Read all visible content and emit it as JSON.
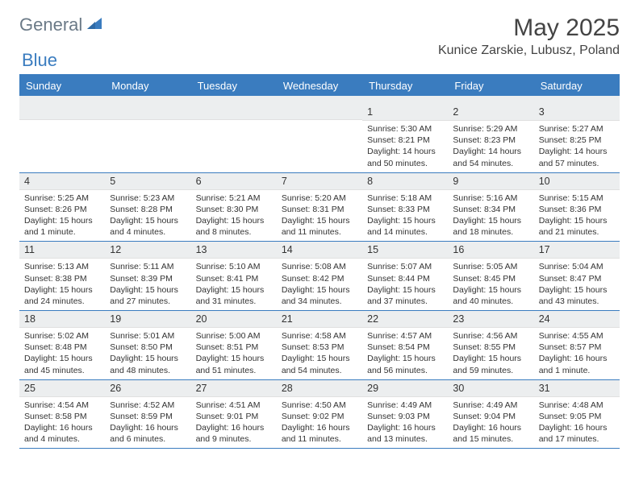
{
  "brand": {
    "part1": "General",
    "part2": "Blue"
  },
  "header": {
    "month_title": "May 2025",
    "location": "Kunice Zarskie, Lubusz, Poland"
  },
  "colors": {
    "accent": "#3a7cbf",
    "daynum_bg": "#eceeef",
    "text": "#333333",
    "logo_gray": "#6b7a87"
  },
  "day_names": [
    "Sunday",
    "Monday",
    "Tuesday",
    "Wednesday",
    "Thursday",
    "Friday",
    "Saturday"
  ],
  "weeks": [
    [
      {
        "day": "",
        "sunrise": "",
        "sunset": "",
        "daylight": ""
      },
      {
        "day": "",
        "sunrise": "",
        "sunset": "",
        "daylight": ""
      },
      {
        "day": "",
        "sunrise": "",
        "sunset": "",
        "daylight": ""
      },
      {
        "day": "",
        "sunrise": "",
        "sunset": "",
        "daylight": ""
      },
      {
        "day": "1",
        "sunrise": "Sunrise: 5:30 AM",
        "sunset": "Sunset: 8:21 PM",
        "daylight": "Daylight: 14 hours and 50 minutes."
      },
      {
        "day": "2",
        "sunrise": "Sunrise: 5:29 AM",
        "sunset": "Sunset: 8:23 PM",
        "daylight": "Daylight: 14 hours and 54 minutes."
      },
      {
        "day": "3",
        "sunrise": "Sunrise: 5:27 AM",
        "sunset": "Sunset: 8:25 PM",
        "daylight": "Daylight: 14 hours and 57 minutes."
      }
    ],
    [
      {
        "day": "4",
        "sunrise": "Sunrise: 5:25 AM",
        "sunset": "Sunset: 8:26 PM",
        "daylight": "Daylight: 15 hours and 1 minute."
      },
      {
        "day": "5",
        "sunrise": "Sunrise: 5:23 AM",
        "sunset": "Sunset: 8:28 PM",
        "daylight": "Daylight: 15 hours and 4 minutes."
      },
      {
        "day": "6",
        "sunrise": "Sunrise: 5:21 AM",
        "sunset": "Sunset: 8:30 PM",
        "daylight": "Daylight: 15 hours and 8 minutes."
      },
      {
        "day": "7",
        "sunrise": "Sunrise: 5:20 AM",
        "sunset": "Sunset: 8:31 PM",
        "daylight": "Daylight: 15 hours and 11 minutes."
      },
      {
        "day": "8",
        "sunrise": "Sunrise: 5:18 AM",
        "sunset": "Sunset: 8:33 PM",
        "daylight": "Daylight: 15 hours and 14 minutes."
      },
      {
        "day": "9",
        "sunrise": "Sunrise: 5:16 AM",
        "sunset": "Sunset: 8:34 PM",
        "daylight": "Daylight: 15 hours and 18 minutes."
      },
      {
        "day": "10",
        "sunrise": "Sunrise: 5:15 AM",
        "sunset": "Sunset: 8:36 PM",
        "daylight": "Daylight: 15 hours and 21 minutes."
      }
    ],
    [
      {
        "day": "11",
        "sunrise": "Sunrise: 5:13 AM",
        "sunset": "Sunset: 8:38 PM",
        "daylight": "Daylight: 15 hours and 24 minutes."
      },
      {
        "day": "12",
        "sunrise": "Sunrise: 5:11 AM",
        "sunset": "Sunset: 8:39 PM",
        "daylight": "Daylight: 15 hours and 27 minutes."
      },
      {
        "day": "13",
        "sunrise": "Sunrise: 5:10 AM",
        "sunset": "Sunset: 8:41 PM",
        "daylight": "Daylight: 15 hours and 31 minutes."
      },
      {
        "day": "14",
        "sunrise": "Sunrise: 5:08 AM",
        "sunset": "Sunset: 8:42 PM",
        "daylight": "Daylight: 15 hours and 34 minutes."
      },
      {
        "day": "15",
        "sunrise": "Sunrise: 5:07 AM",
        "sunset": "Sunset: 8:44 PM",
        "daylight": "Daylight: 15 hours and 37 minutes."
      },
      {
        "day": "16",
        "sunrise": "Sunrise: 5:05 AM",
        "sunset": "Sunset: 8:45 PM",
        "daylight": "Daylight: 15 hours and 40 minutes."
      },
      {
        "day": "17",
        "sunrise": "Sunrise: 5:04 AM",
        "sunset": "Sunset: 8:47 PM",
        "daylight": "Daylight: 15 hours and 43 minutes."
      }
    ],
    [
      {
        "day": "18",
        "sunrise": "Sunrise: 5:02 AM",
        "sunset": "Sunset: 8:48 PM",
        "daylight": "Daylight: 15 hours and 45 minutes."
      },
      {
        "day": "19",
        "sunrise": "Sunrise: 5:01 AM",
        "sunset": "Sunset: 8:50 PM",
        "daylight": "Daylight: 15 hours and 48 minutes."
      },
      {
        "day": "20",
        "sunrise": "Sunrise: 5:00 AM",
        "sunset": "Sunset: 8:51 PM",
        "daylight": "Daylight: 15 hours and 51 minutes."
      },
      {
        "day": "21",
        "sunrise": "Sunrise: 4:58 AM",
        "sunset": "Sunset: 8:53 PM",
        "daylight": "Daylight: 15 hours and 54 minutes."
      },
      {
        "day": "22",
        "sunrise": "Sunrise: 4:57 AM",
        "sunset": "Sunset: 8:54 PM",
        "daylight": "Daylight: 15 hours and 56 minutes."
      },
      {
        "day": "23",
        "sunrise": "Sunrise: 4:56 AM",
        "sunset": "Sunset: 8:55 PM",
        "daylight": "Daylight: 15 hours and 59 minutes."
      },
      {
        "day": "24",
        "sunrise": "Sunrise: 4:55 AM",
        "sunset": "Sunset: 8:57 PM",
        "daylight": "Daylight: 16 hours and 1 minute."
      }
    ],
    [
      {
        "day": "25",
        "sunrise": "Sunrise: 4:54 AM",
        "sunset": "Sunset: 8:58 PM",
        "daylight": "Daylight: 16 hours and 4 minutes."
      },
      {
        "day": "26",
        "sunrise": "Sunrise: 4:52 AM",
        "sunset": "Sunset: 8:59 PM",
        "daylight": "Daylight: 16 hours and 6 minutes."
      },
      {
        "day": "27",
        "sunrise": "Sunrise: 4:51 AM",
        "sunset": "Sunset: 9:01 PM",
        "daylight": "Daylight: 16 hours and 9 minutes."
      },
      {
        "day": "28",
        "sunrise": "Sunrise: 4:50 AM",
        "sunset": "Sunset: 9:02 PM",
        "daylight": "Daylight: 16 hours and 11 minutes."
      },
      {
        "day": "29",
        "sunrise": "Sunrise: 4:49 AM",
        "sunset": "Sunset: 9:03 PM",
        "daylight": "Daylight: 16 hours and 13 minutes."
      },
      {
        "day": "30",
        "sunrise": "Sunrise: 4:49 AM",
        "sunset": "Sunset: 9:04 PM",
        "daylight": "Daylight: 16 hours and 15 minutes."
      },
      {
        "day": "31",
        "sunrise": "Sunrise: 4:48 AM",
        "sunset": "Sunset: 9:05 PM",
        "daylight": "Daylight: 16 hours and 17 minutes."
      }
    ]
  ]
}
